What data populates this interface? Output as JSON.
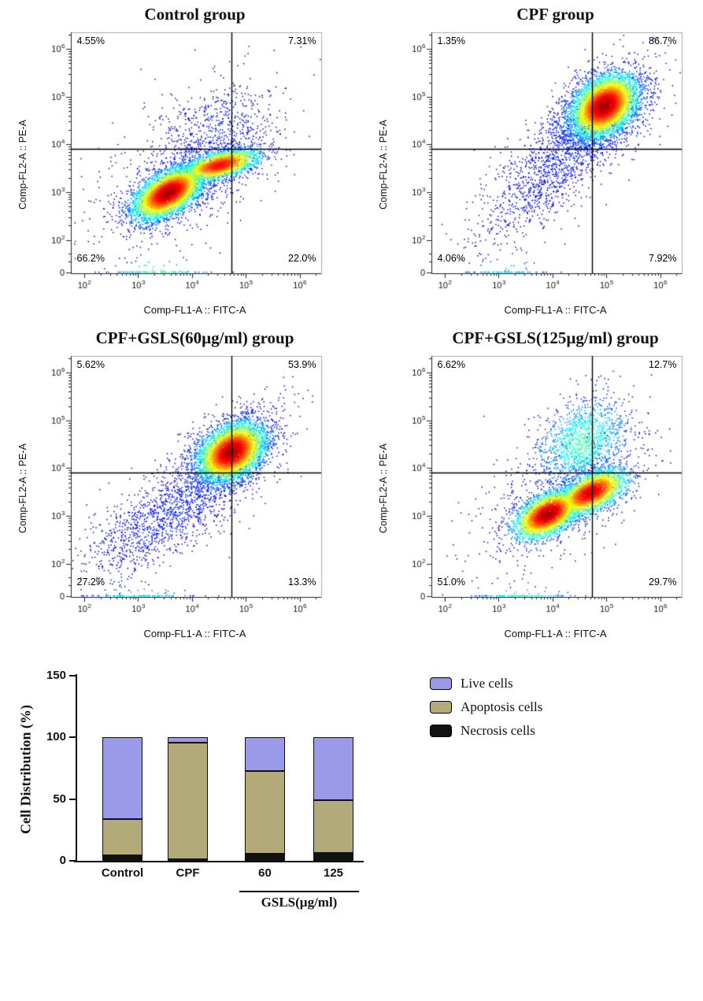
{
  "chart_data": [
    {
      "type": "density-scatter",
      "title": "Control group",
      "xlabel": "Comp-FL1-A :: FITC-A",
      "ylabel": "Comp-FL2-A :: PE-A",
      "x_scale": "log",
      "y_scale": "log",
      "x_tick_exponents": [
        2,
        3,
        4,
        5,
        6
      ],
      "y_tick_exponents": [
        2,
        3,
        4,
        5,
        6
      ],
      "y_zero_label": "0",
      "quadrants": {
        "ul": "4.55%",
        "ur": "7.31%",
        "ll": "66.2%",
        "lr": "22.0%"
      },
      "gate": {
        "x_log": 4.73,
        "y_log": 3.9
      },
      "seed": 11,
      "populations": [
        [
          3.55,
          3.0,
          0.32,
          0.27,
          0.55,
          5000,
          1.0,
          0
        ],
        [
          4.5,
          3.58,
          0.36,
          0.17,
          0.55,
          2400,
          0.9,
          0
        ],
        [
          4.05,
          3.3,
          0.75,
          0.6,
          0.7,
          800,
          0.15,
          0
        ],
        [
          4.35,
          4.35,
          0.55,
          0.55,
          0.45,
          420,
          0.12,
          0
        ],
        [
          3.8,
          3.5,
          1.05,
          1.0,
          0.5,
          320,
          0.06,
          0
        ],
        [
          3.3,
          1.1,
          0.45,
          0.25,
          0.0,
          130,
          0.5,
          1
        ]
      ]
    },
    {
      "type": "density-scatter",
      "title": "CPF group",
      "xlabel": "Comp-FL1-A :: FITC-A",
      "ylabel": "Comp-FL2-A :: PE-A",
      "x_scale": "log",
      "y_scale": "log",
      "x_tick_exponents": [
        2,
        3,
        4,
        5,
        6
      ],
      "y_tick_exponents": [
        2,
        3,
        4,
        5,
        6
      ],
      "y_zero_label": "0",
      "quadrants": {
        "ul": "1.35%",
        "ur": "86.7%",
        "ll": "4.06%",
        "lr": "7.92%"
      },
      "gate": {
        "x_log": 4.73,
        "y_log": 3.9
      },
      "seed": 22,
      "populations": [
        [
          4.95,
          4.82,
          0.3,
          0.32,
          0.35,
          5800,
          1.0,
          0
        ],
        [
          4.8,
          4.55,
          0.6,
          0.65,
          0.55,
          1300,
          0.18,
          0
        ],
        [
          4.0,
          3.5,
          0.6,
          0.7,
          0.75,
          750,
          0.12,
          0
        ],
        [
          3.3,
          2.8,
          0.55,
          0.6,
          0.4,
          220,
          0.06,
          0
        ],
        [
          3.1,
          1.1,
          0.4,
          0.25,
          0.0,
          90,
          0.4,
          1
        ]
      ]
    },
    {
      "type": "density-scatter",
      "title": "CPF+GSLS(60µg/ml) group",
      "xlabel": "Comp-FL1-A :: FITC-A",
      "ylabel": "Comp-FL2-A :: PE-A",
      "x_scale": "log",
      "y_scale": "log",
      "x_tick_exponents": [
        2,
        3,
        4,
        5,
        6
      ],
      "y_tick_exponents": [
        2,
        3,
        4,
        5,
        6
      ],
      "y_zero_label": "0",
      "quadrants": {
        "ul": "5.62%",
        "ur": "53.9%",
        "ll": "27.2%",
        "lr": "13.3%"
      },
      "gate": {
        "x_log": 4.73,
        "y_log": 3.9
      },
      "seed": 33,
      "populations": [
        [
          4.72,
          4.35,
          0.3,
          0.3,
          0.35,
          5200,
          1.0,
          0
        ],
        [
          4.55,
          4.15,
          0.6,
          0.6,
          0.6,
          1200,
          0.18,
          0
        ],
        [
          3.6,
          3.05,
          0.7,
          0.6,
          0.7,
          900,
          0.13,
          0
        ],
        [
          2.9,
          2.5,
          0.5,
          0.5,
          0.3,
          260,
          0.07,
          0
        ],
        [
          3.0,
          1.1,
          0.5,
          0.25,
          0.0,
          110,
          0.4,
          1
        ]
      ]
    },
    {
      "type": "density-scatter",
      "title": "CPF+GSLS(125µg/ml) group",
      "xlabel": "Comp-FL1-A :: FITC-A",
      "ylabel": "Comp-FL2-A :: PE-A",
      "x_scale": "log",
      "y_scale": "log",
      "x_tick_exponents": [
        2,
        3,
        4,
        5,
        6
      ],
      "y_tick_exponents": [
        2,
        3,
        4,
        5,
        6
      ],
      "y_zero_label": "0",
      "quadrants": {
        "ul": "6.62%",
        "ur": "12.7%",
        "ll": "51.0%",
        "lr": "29.7%"
      },
      "gate": {
        "x_log": 4.73,
        "y_log": 3.9
      },
      "seed": 44,
      "populations": [
        [
          3.9,
          3.05,
          0.3,
          0.25,
          0.5,
          3600,
          1.0,
          0
        ],
        [
          4.7,
          3.5,
          0.32,
          0.24,
          0.55,
          2900,
          0.95,
          0
        ],
        [
          4.55,
          4.55,
          0.42,
          0.45,
          0.3,
          1300,
          0.45,
          0
        ],
        [
          4.2,
          3.6,
          0.85,
          0.85,
          0.55,
          600,
          0.08,
          0
        ],
        [
          3.4,
          1.1,
          0.5,
          0.25,
          0.0,
          120,
          0.45,
          1
        ]
      ]
    },
    {
      "type": "stacked-bar",
      "ylabel": "Cell Distribution (%)",
      "ylim": [
        0,
        150
      ],
      "yticks": [
        0,
        50,
        100,
        150
      ],
      "categories": [
        "Control",
        "CPF",
        "60",
        "125"
      ],
      "series": [
        {
          "name": "Necrosis cells",
          "color": "#111111",
          "values": [
            4.55,
            1.35,
            5.62,
            6.62
          ]
        },
        {
          "name": "Apoptosis cells",
          "color": "#b3aa79",
          "values": [
            29.3,
            94.6,
            67.2,
            42.4
          ]
        },
        {
          "name": "Live cells",
          "color": "#9a99ea",
          "values": [
            66.2,
            4.06,
            27.2,
            51.0
          ]
        }
      ],
      "legend": [
        {
          "label": "Live cells",
          "color": "#9a99ea"
        },
        {
          "label": "Apoptosis cells",
          "color": "#b3aa79"
        },
        {
          "label": "Necrosis cells",
          "color": "#111111"
        }
      ],
      "group_label": "GSLS(µg/ml)",
      "group_members": [
        "60",
        "125"
      ],
      "legend_position": "right",
      "grid": false
    }
  ]
}
